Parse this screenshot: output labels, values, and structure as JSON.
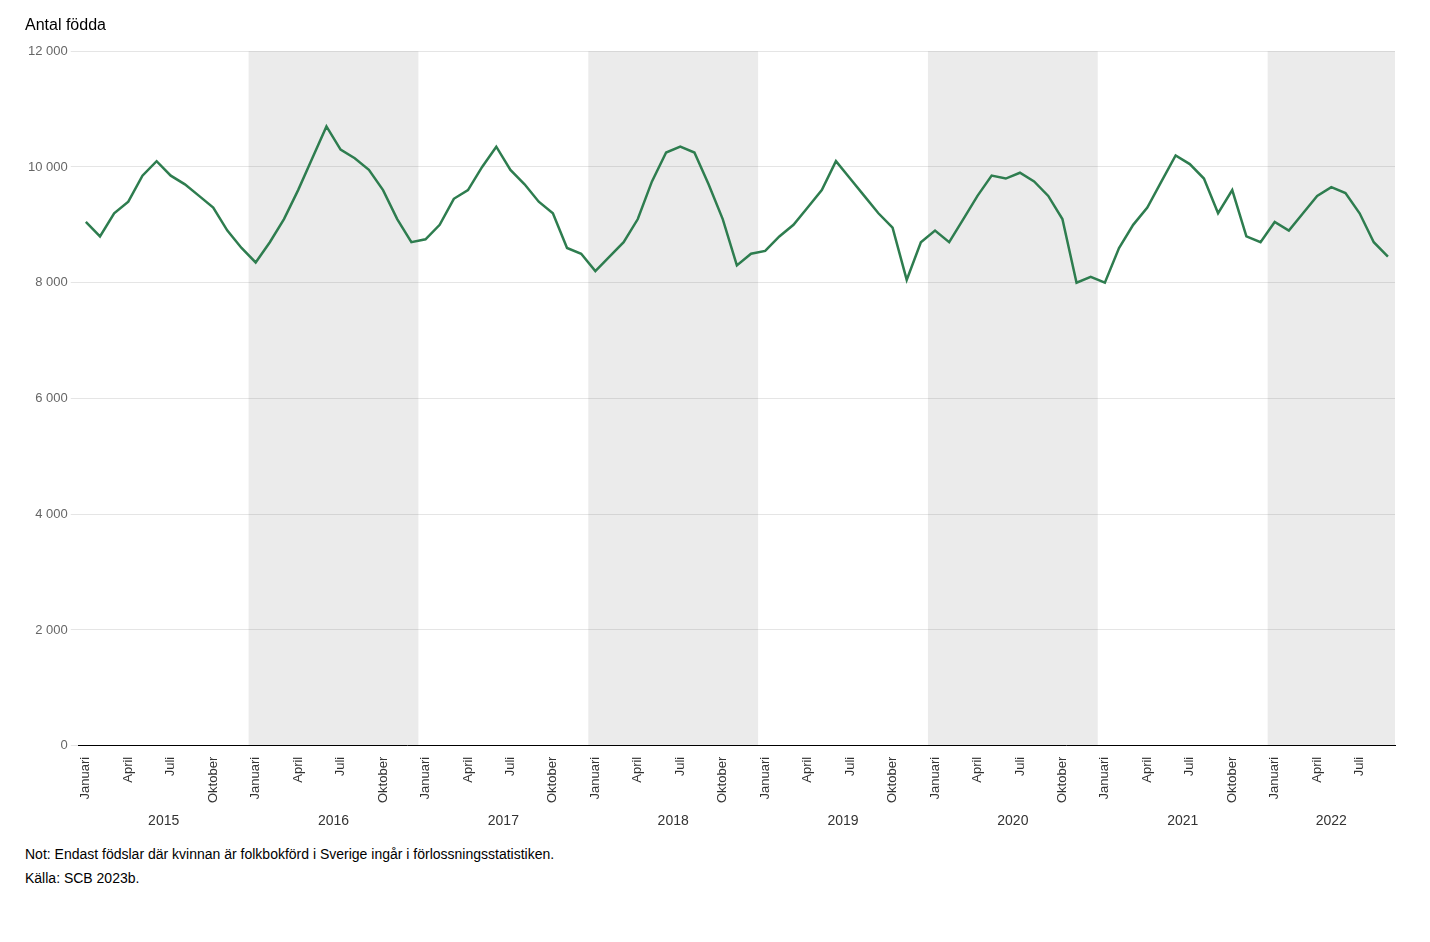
{
  "chart_data": {
    "type": "line",
    "title": "Antal födda",
    "note": "Not: Endast födslar där kvinnan är folkbokförd i Sverige ingår i förlossningsstatistiken.",
    "source": "Källa: SCB 2023b.",
    "color": "#2e7d4f",
    "grid": true,
    "legend": false,
    "ylim": [
      0,
      12000
    ],
    "yticks": [
      0,
      {
        "value": 2000,
        "label": "2 000"
      },
      {
        "value": 4000,
        "label": "4 000"
      },
      {
        "value": 6000,
        "label": "6 000"
      },
      {
        "value": 8000,
        "label": "8 000"
      },
      {
        "value": 10000,
        "label": "10 000"
      },
      {
        "value": 12000,
        "label": "12 000"
      }
    ],
    "groups": [
      {
        "label": "2015",
        "count": 12,
        "shaded": false
      },
      {
        "label": "2016",
        "count": 12,
        "shaded": true
      },
      {
        "label": "2017",
        "count": 12,
        "shaded": false
      },
      {
        "label": "2018",
        "count": 12,
        "shaded": true
      },
      {
        "label": "2019",
        "count": 12,
        "shaded": false
      },
      {
        "label": "2020",
        "count": 12,
        "shaded": true
      },
      {
        "label": "2021",
        "count": 12,
        "shaded": false
      },
      {
        "label": "2022",
        "count": 9,
        "shaded": true
      }
    ],
    "categories": [
      "Januari",
      null,
      null,
      "April",
      null,
      null,
      "Juli",
      null,
      null,
      "Oktober",
      null,
      null,
      "Januari",
      null,
      null,
      "April",
      null,
      null,
      "Juli",
      null,
      null,
      "Oktober",
      null,
      null,
      "Januari",
      null,
      null,
      "April",
      null,
      null,
      "Juli",
      null,
      null,
      "Oktober",
      null,
      null,
      "Januari",
      null,
      null,
      "April",
      null,
      null,
      "Juli",
      null,
      null,
      "Oktober",
      null,
      null,
      "Januari",
      null,
      null,
      "April",
      null,
      null,
      "Juli",
      null,
      null,
      "Oktober",
      null,
      null,
      "Januari",
      null,
      null,
      "April",
      null,
      null,
      "Juli",
      null,
      null,
      "Oktober",
      null,
      null,
      "Januari",
      null,
      null,
      "April",
      null,
      null,
      "Juli",
      null,
      null,
      "Oktober",
      null,
      null,
      "Januari",
      null,
      null,
      "April",
      null,
      null,
      "Juli",
      null,
      null
    ],
    "values": [
      9050,
      8800,
      9200,
      9400,
      9850,
      10100,
      9850,
      9700,
      9500,
      9300,
      8900,
      8600,
      8350,
      8700,
      9100,
      9600,
      10150,
      10700,
      10300,
      10150,
      9950,
      9600,
      9100,
      8700,
      8750,
      9000,
      9450,
      9600,
      10000,
      10350,
      9950,
      9700,
      9400,
      9200,
      8600,
      8500,
      8200,
      8450,
      8700,
      9100,
      9750,
      10250,
      10350,
      10250,
      9700,
      9100,
      8300,
      8500,
      8550,
      8800,
      9000,
      9300,
      9600,
      10100,
      9800,
      9500,
      9200,
      8950,
      8050,
      8700,
      8900,
      8700,
      9100,
      9500,
      9850,
      9800,
      9900,
      9750,
      9500,
      9100,
      8000,
      8100,
      8000,
      8600,
      9000,
      9300,
      9750,
      10200,
      10050,
      9800,
      9200,
      9600,
      8800,
      8700,
      9050,
      8900,
      9200,
      9500,
      9650,
      9550,
      9200,
      8700,
      8450
    ]
  }
}
